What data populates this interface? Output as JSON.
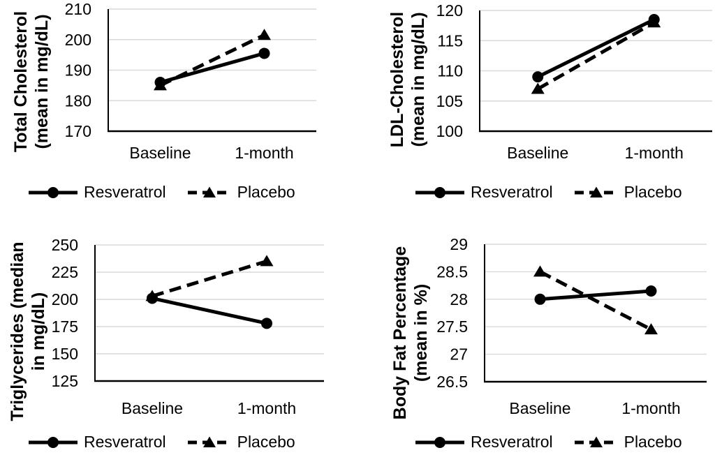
{
  "colors": {
    "background": "#ffffff",
    "text": "#000000",
    "series": "#000000",
    "gridline": "#d9d9d9"
  },
  "chart_data": [
    {
      "type": "line",
      "ylabel": "Total Cholesterol (mean in mg/dL)",
      "ylabel_lines": [
        "Total Cholesterol",
        "(mean in mg/dL)"
      ],
      "categories": [
        "Baseline",
        "1-month"
      ],
      "ylim": [
        170,
        210
      ],
      "yticks": [
        170,
        180,
        190,
        200,
        210
      ],
      "grid": true,
      "legend_position": "bottom",
      "series": [
        {
          "name": "Resveratrol",
          "line_style": "solid",
          "marker": "circle",
          "values": [
            186,
            195.5
          ]
        },
        {
          "name": "Placebo",
          "line_style": "dashed",
          "marker": "triangle",
          "values": [
            185,
            201.5
          ]
        }
      ]
    },
    {
      "type": "line",
      "ylabel": "LDL-Cholesterol (mean in mg/dL)",
      "ylabel_lines": [
        "LDL-Cholesterol",
        "(mean in mg/dL)"
      ],
      "categories": [
        "Baseline",
        "1-month"
      ],
      "ylim": [
        100,
        120
      ],
      "yticks": [
        100,
        105,
        110,
        115,
        120
      ],
      "grid": true,
      "legend_position": "bottom",
      "series": [
        {
          "name": "Resveratrol",
          "line_style": "solid",
          "marker": "circle",
          "values": [
            109,
            118.5
          ]
        },
        {
          "name": "Placebo",
          "line_style": "dashed",
          "marker": "triangle",
          "values": [
            107,
            118
          ]
        }
      ]
    },
    {
      "type": "line",
      "ylabel": "Triglycerides (median in mg/dL)",
      "ylabel_lines": [
        "Triglycerides (median",
        "in mg/dL)"
      ],
      "categories": [
        "Baseline",
        "1-month"
      ],
      "ylim": [
        125,
        250
      ],
      "yticks": [
        125,
        150,
        175,
        200,
        225,
        250
      ],
      "grid": true,
      "legend_position": "bottom",
      "series": [
        {
          "name": "Resveratrol",
          "line_style": "solid",
          "marker": "circle",
          "values": [
            201,
            178
          ]
        },
        {
          "name": "Placebo",
          "line_style": "dashed",
          "marker": "triangle",
          "values": [
            203,
            235
          ]
        }
      ]
    },
    {
      "type": "line",
      "ylabel": "Body Fat Percentage (mean in %)",
      "ylabel_lines": [
        "Body Fat Percentage",
        "(mean in %)"
      ],
      "categories": [
        "Baseline",
        "1-month"
      ],
      "ylim": [
        26.5,
        29
      ],
      "yticks": [
        26.5,
        27,
        27.5,
        28,
        28.5,
        29
      ],
      "grid": true,
      "legend_position": "bottom",
      "series": [
        {
          "name": "Resveratrol",
          "line_style": "solid",
          "marker": "circle",
          "values": [
            28,
            28.15
          ]
        },
        {
          "name": "Placebo",
          "line_style": "dashed",
          "marker": "triangle",
          "values": [
            28.5,
            27.45
          ]
        }
      ]
    }
  ]
}
